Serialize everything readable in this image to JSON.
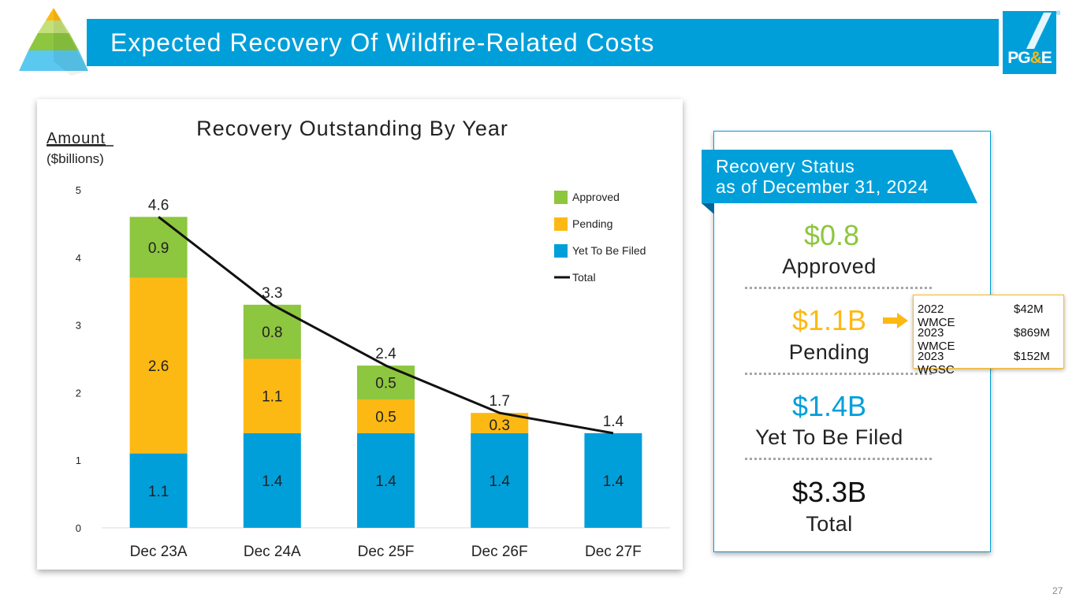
{
  "header": {
    "title": "Expected Recovery Of Wildfire-Related Costs",
    "logo_text_1": "PG",
    "logo_text_2": "&",
    "logo_text_3": "E",
    "registered_mark": "®"
  },
  "chart_data": {
    "type": "bar",
    "stacked": true,
    "title": "Recovery Outstanding By Year",
    "ylabel": "Amount",
    "ylabel_units": "($billions)",
    "ylim": [
      0,
      5
    ],
    "yticks": [
      "0",
      "1",
      "2",
      "3",
      "4",
      "5"
    ],
    "categories": [
      "Dec 23A",
      "Dec 24A",
      "Dec 25F",
      "Dec 26F",
      "Dec 27F"
    ],
    "series": [
      {
        "name": "Yet To Be Filed",
        "color": "#009FDA",
        "values": [
          1.1,
          1.4,
          1.4,
          1.4,
          1.4
        ],
        "labels": [
          "1.1",
          "1.4",
          "1.4",
          "1.4",
          "1.4"
        ]
      },
      {
        "name": "Pending",
        "color": "#FDB913",
        "values": [
          2.6,
          1.1,
          0.5,
          0.3,
          0
        ],
        "labels": [
          "2.6",
          "1.1",
          "0.5",
          "0.3",
          ""
        ]
      },
      {
        "name": "Approved",
        "color": "#8DC63F",
        "values": [
          0.9,
          0.8,
          0.5,
          0,
          0
        ],
        "labels": [
          "0.9",
          "0.8",
          "0.5",
          "",
          ""
        ]
      }
    ],
    "total": {
      "name": "Total",
      "color": "#111111",
      "values": [
        4.6,
        3.3,
        2.4,
        1.7,
        1.4
      ],
      "labels": [
        "4.6",
        "3.3",
        "2.4",
        "1.7",
        "1.4"
      ]
    },
    "legend": {
      "placement": "top-right",
      "items": [
        {
          "label": "Approved",
          "color": "#8DC63F",
          "kind": "swatch"
        },
        {
          "label": "Pending",
          "color": "#FDB913",
          "kind": "swatch"
        },
        {
          "label": "Yet To Be Filed",
          "color": "#009FDA",
          "kind": "swatch"
        },
        {
          "label": "Total",
          "color": "#111111",
          "kind": "line"
        }
      ]
    },
    "grid": false
  },
  "status": {
    "banner_line1": "Recovery Status",
    "banner_line2": "as of December 31, 2024",
    "approved_value": "$0.8",
    "approved_label": "Approved",
    "pending_value": "$1.1B",
    "pending_label": "Pending",
    "ytbf_value": "$1.4B",
    "ytbf_label": "Yet To Be Filed",
    "total_value": "$3.3B",
    "total_label": "Total",
    "pending_breakdown": [
      {
        "name": "2022 WMCE",
        "amount": "$42M"
      },
      {
        "name": "2023 WMCE",
        "amount": "$869M"
      },
      {
        "name": "2023 WGSC",
        "amount": "$152M"
      }
    ]
  },
  "colors": {
    "brand_blue": "#009FDA",
    "approved_green": "#8DC63F",
    "pending_gold": "#FDB913"
  },
  "page_number": "27"
}
